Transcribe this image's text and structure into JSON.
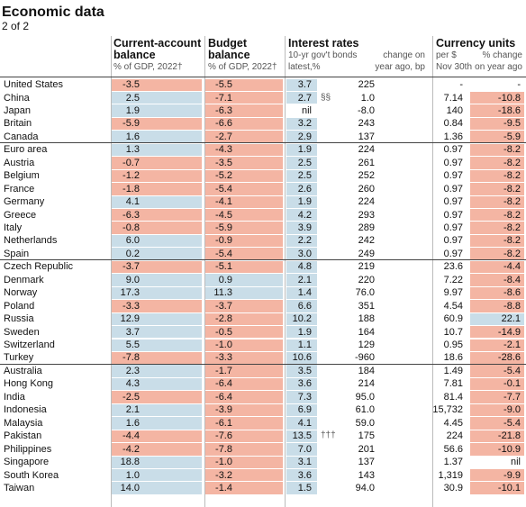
{
  "header": {
    "title": "Economic data",
    "subtitle": "2 of 2"
  },
  "column_headers": {
    "current_account": {
      "title": "Current-account",
      "title2": "balance",
      "unit": "% of GDP, 2022†"
    },
    "budget": {
      "title": "Budget",
      "title2": "balance",
      "unit": "% of GDP, 2022†"
    },
    "interest": {
      "title": "Interest rates",
      "bonds": "10-yr gov't bonds",
      "latest": "latest,%",
      "change1": "change on",
      "change2": "year ago, bp"
    },
    "currency": {
      "title": "Currency units",
      "per": "per $",
      "date": "Nov 30th",
      "change1": "% change",
      "change2": "on year ago"
    }
  },
  "table": {
    "groups": [
      {
        "rows": [
          {
            "country": "United States",
            "ca": "-3.5",
            "budget": "-5.5",
            "bond": "3.7",
            "bp": "225",
            "fx": "-",
            "fx_change": "-"
          },
          {
            "country": "China",
            "ca": "2.5",
            "budget": "-7.1",
            "bond": "2.7",
            "note": "§§",
            "bp": "1.0",
            "fx": "7.14",
            "fx_change": "-10.8"
          },
          {
            "country": "Japan",
            "ca": "1.9",
            "budget": "-6.3",
            "bond": "nil",
            "bp": "-8.0",
            "fx": "140",
            "fx_change": "-18.6"
          },
          {
            "country": "Britain",
            "ca": "-5.9",
            "budget": "-6.6",
            "bond": "3.2",
            "bp": "243",
            "fx": "0.84",
            "fx_change": "-9.5"
          },
          {
            "country": "Canada",
            "ca": "1.6",
            "budget": "-2.7",
            "bond": "2.9",
            "bp": "137",
            "fx": "1.36",
            "fx_change": "-5.9"
          }
        ]
      },
      {
        "rows": [
          {
            "country": "Euro area",
            "ca": "1.3",
            "budget": "-4.3",
            "bond": "1.9",
            "bp": "224",
            "fx": "0.97",
            "fx_change": "-8.2"
          },
          {
            "country": "Austria",
            "ca": "-0.7",
            "budget": "-3.5",
            "bond": "2.5",
            "bp": "261",
            "fx": "0.97",
            "fx_change": "-8.2"
          },
          {
            "country": "Belgium",
            "ca": "-1.2",
            "budget": "-5.2",
            "bond": "2.5",
            "bp": "252",
            "fx": "0.97",
            "fx_change": "-8.2"
          },
          {
            "country": "France",
            "ca": "-1.8",
            "budget": "-5.4",
            "bond": "2.6",
            "bp": "260",
            "fx": "0.97",
            "fx_change": "-8.2"
          },
          {
            "country": "Germany",
            "ca": "4.1",
            "budget": "-4.1",
            "bond": "1.9",
            "bp": "224",
            "fx": "0.97",
            "fx_change": "-8.2"
          },
          {
            "country": "Greece",
            "ca": "-6.3",
            "budget": "-4.5",
            "bond": "4.2",
            "bp": "293",
            "fx": "0.97",
            "fx_change": "-8.2"
          },
          {
            "country": "Italy",
            "ca": "-0.8",
            "budget": "-5.9",
            "bond": "3.9",
            "bp": "289",
            "fx": "0.97",
            "fx_change": "-8.2"
          },
          {
            "country": "Netherlands",
            "ca": "6.0",
            "budget": "-0.9",
            "bond": "2.2",
            "bp": "242",
            "fx": "0.97",
            "fx_change": "-8.2"
          },
          {
            "country": "Spain",
            "ca": "0.2",
            "budget": "-5.4",
            "bond": "3.0",
            "bp": "249",
            "fx": "0.97",
            "fx_change": "-8.2"
          }
        ]
      },
      {
        "rows": [
          {
            "country": "Czech Republic",
            "ca": "-3.7",
            "budget": "-5.1",
            "bond": "4.8",
            "bp": "219",
            "fx": "23.6",
            "fx_change": "-4.4"
          },
          {
            "country": "Denmark",
            "ca": "9.0",
            "budget": "0.9",
            "bond": "2.1",
            "bp": "220",
            "fx": "7.22",
            "fx_change": "-8.4"
          },
          {
            "country": "Norway",
            "ca": "17.3",
            "budget": "11.3",
            "bond": "1.4",
            "bp": "76.0",
            "fx": "9.97",
            "fx_change": "-8.6"
          },
          {
            "country": "Poland",
            "ca": "-3.3",
            "budget": "-3.7",
            "bond": "6.6",
            "bp": "351",
            "fx": "4.54",
            "fx_change": "-8.8"
          },
          {
            "country": "Russia",
            "ca": "12.9",
            "budget": "-2.8",
            "bond": "10.2",
            "bp": "188",
            "fx": "60.9",
            "fx_change": "22.1"
          },
          {
            "country": "Sweden",
            "ca": "3.7",
            "budget": "-0.5",
            "bond": "1.9",
            "bp": "164",
            "fx": "10.7",
            "fx_change": "-14.9"
          },
          {
            "country": "Switzerland",
            "ca": "5.5",
            "budget": "-1.0",
            "bond": "1.1",
            "bp": "129",
            "fx": "0.95",
            "fx_change": "-2.1"
          },
          {
            "country": "Turkey",
            "ca": "-7.8",
            "budget": "-3.3",
            "bond": "10.6",
            "bp": "-960",
            "fx": "18.6",
            "fx_change": "-28.6"
          }
        ]
      },
      {
        "rows": [
          {
            "country": "Australia",
            "ca": "2.3",
            "budget": "-1.7",
            "bond": "3.5",
            "bp": "184",
            "fx": "1.49",
            "fx_change": "-5.4"
          },
          {
            "country": "Hong Kong",
            "ca": "4.3",
            "budget": "-6.4",
            "bond": "3.6",
            "bp": "214",
            "fx": "7.81",
            "fx_change": "-0.1"
          },
          {
            "country": "India",
            "ca": "-2.5",
            "budget": "-6.4",
            "bond": "7.3",
            "bp": "95.0",
            "fx": "81.4",
            "fx_change": "-7.7"
          },
          {
            "country": "Indonesia",
            "ca": "2.1",
            "budget": "-3.9",
            "bond": "6.9",
            "bp": "61.0",
            "fx": "15,732",
            "fx_change": "-9.0"
          },
          {
            "country": "Malaysia",
            "ca": "1.6",
            "budget": "-6.1",
            "bond": "4.1",
            "bp": "59.0",
            "fx": "4.45",
            "fx_change": "-5.4"
          },
          {
            "country": "Pakistan",
            "ca": "-4.4",
            "budget": "-7.6",
            "bond": "13.5",
            "note": "†††",
            "bp": "175",
            "fx": "224",
            "fx_change": "-21.8"
          },
          {
            "country": "Philippines",
            "ca": "-4.2",
            "budget": "-7.8",
            "bond": "7.0",
            "bp": "201",
            "fx": "56.6",
            "fx_change": "-10.9"
          },
          {
            "country": "Singapore",
            "ca": "18.8",
            "budget": "-1.0",
            "bond": "3.1",
            "bp": "137",
            "fx": "1.37",
            "fx_change": "nil"
          },
          {
            "country": "South Korea",
            "ca": "1.0",
            "budget": "-3.2",
            "bond": "3.6",
            "bp": "143",
            "fx": "1,319",
            "fx_change": "-9.9"
          },
          {
            "country": "Taiwan",
            "ca": "14.0",
            "budget": "-1.4",
            "bond": "1.5",
            "bp": "94.0",
            "fx": "30.9",
            "fx_change": "-10.1"
          }
        ]
      }
    ]
  }
}
